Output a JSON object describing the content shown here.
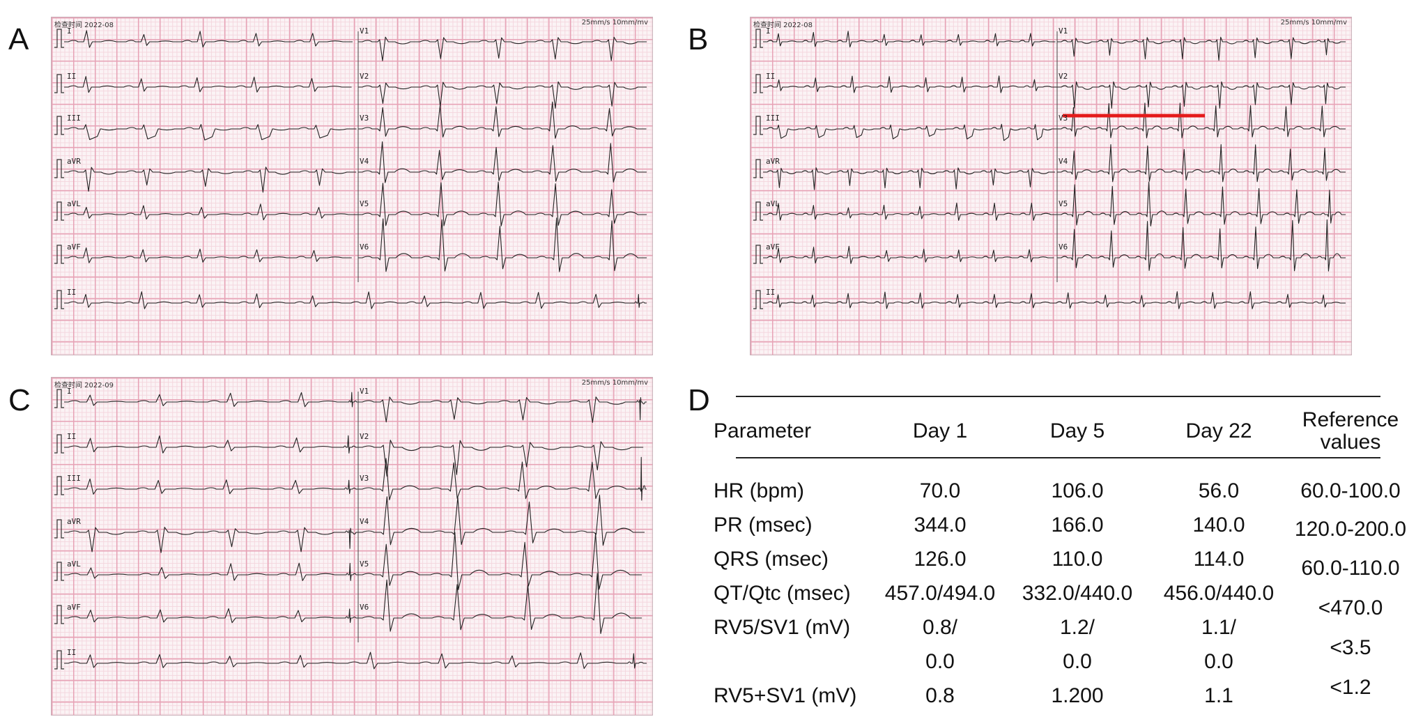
{
  "panels": {
    "A": {
      "letter": "A",
      "header_left": "检查时间  2022-08",
      "header_right": "25mm/s  10mm/mv",
      "leads_left": [
        "I",
        "II",
        "III",
        "aVR",
        "aVL",
        "aVF",
        "II"
      ],
      "leads_right": [
        "V1",
        "V2",
        "V3",
        "V4",
        "V5",
        "V6"
      ]
    },
    "B": {
      "letter": "B",
      "header_left": "检查时间  2022-08",
      "header_right": "25mm/s  10mm/mv",
      "leads_left": [
        "I",
        "II",
        "III",
        "aVR",
        "aVL",
        "aVF",
        "II"
      ],
      "leads_right": [
        "V1",
        "V2",
        "V3",
        "V4",
        "V5",
        "V6"
      ],
      "highlight_color": "#e41b1b"
    },
    "C": {
      "letter": "C",
      "header_left": "检查时间  2022-09",
      "header_right": "25mm/s  10mm/mv",
      "leads_left": [
        "I",
        "II",
        "III",
        "aVR",
        "aVL",
        "aVF",
        "II"
      ],
      "leads_right": [
        "V1",
        "V2",
        "V3",
        "V4",
        "V5",
        "V6"
      ]
    }
  },
  "table": {
    "letter": "D",
    "headers": [
      "Parameter",
      "Day 1",
      "Day 5",
      "Day 22",
      "Reference",
      "values"
    ],
    "rows": [
      [
        "HR (bpm)",
        "70.0",
        "106.0",
        "56.0"
      ],
      [
        "PR (msec)",
        "344.0",
        "166.0",
        "140.0"
      ],
      [
        "QRS (msec)",
        "126.0",
        "110.0",
        "114.0"
      ],
      [
        "QT/Qtc (msec)",
        "457.0/494.0",
        "332.0/440.0",
        "456.0/440.0"
      ],
      [
        "RV5/SV1 (mV)",
        "0.8/",
        "1.2/",
        "1.1/"
      ],
      [
        "",
        "0.0",
        "0.0",
        "0.0"
      ],
      [
        "RV5+SV1 (mV)",
        "0.8",
        "1.200",
        "1.1"
      ]
    ],
    "reference": [
      "60.0-100.0",
      "120.0-200.0",
      "60.0-110.0",
      "<470.0",
      "<3.5",
      "<1.2"
    ]
  }
}
